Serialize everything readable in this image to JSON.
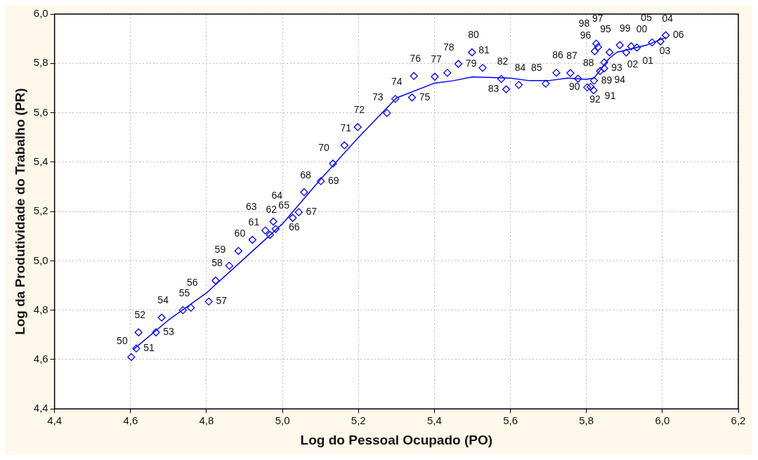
{
  "chart_data": {
    "type": "scatter",
    "xlabel": "Log do Pessoal Ocupado (PO)",
    "ylabel": "Log da Produtividade do Trabalho (PR)",
    "xlim": [
      4.4,
      6.2
    ],
    "ylim": [
      4.4,
      6.0
    ],
    "xticks": [
      {
        "value": 4.4,
        "label": "4,4"
      },
      {
        "value": 4.6,
        "label": "4,6"
      },
      {
        "value": 4.8,
        "label": "4,8"
      },
      {
        "value": 5.0,
        "label": "5,0"
      },
      {
        "value": 5.2,
        "label": "5,2"
      },
      {
        "value": 5.4,
        "label": "5,4"
      },
      {
        "value": 5.6,
        "label": "5,6"
      },
      {
        "value": 5.8,
        "label": "5,8"
      },
      {
        "value": 6.0,
        "label": "6,0"
      },
      {
        "value": 6.2,
        "label": "6,2"
      }
    ],
    "yticks": [
      {
        "value": 4.4,
        "label": "4,4"
      },
      {
        "value": 4.6,
        "label": "4,6"
      },
      {
        "value": 4.8,
        "label": "4,8"
      },
      {
        "value": 5.0,
        "label": "5,0"
      },
      {
        "value": 5.2,
        "label": "5,2"
      },
      {
        "value": 5.4,
        "label": "5,4"
      },
      {
        "value": 5.6,
        "label": "5,6"
      },
      {
        "value": 5.8,
        "label": "5,8"
      },
      {
        "value": 6.0,
        "label": "6,0"
      }
    ],
    "grid": true,
    "legend": false,
    "series": [
      {
        "type": "scatter",
        "color": "#0000ff",
        "marker": "diamond",
        "x": [
          4.602,
          4.615,
          4.621,
          4.667,
          4.682,
          4.738,
          4.759,
          4.806,
          4.824,
          4.86,
          4.884,
          4.921,
          4.967,
          4.955,
          4.982,
          4.976,
          5.027,
          5.043,
          5.057,
          5.101,
          5.133,
          5.163,
          5.198,
          5.275,
          5.297,
          5.341,
          5.346,
          5.401,
          5.434,
          5.463,
          5.499,
          5.527,
          5.576,
          5.589,
          5.622,
          5.693,
          5.721,
          5.758,
          5.778,
          5.82,
          5.802,
          5.811,
          5.819,
          5.847,
          5.836,
          5.847,
          5.822,
          5.826,
          5.831,
          5.861,
          5.905,
          5.888,
          5.918,
          5.933,
          5.973,
          5.995,
          6.009
        ],
        "values": [
          4.61,
          4.645,
          4.71,
          4.71,
          4.77,
          4.8,
          4.81,
          4.835,
          4.92,
          4.98,
          5.04,
          5.085,
          5.105,
          5.123,
          5.129,
          5.159,
          5.174,
          5.197,
          5.278,
          5.323,
          5.394,
          5.468,
          5.542,
          5.599,
          5.656,
          5.662,
          5.749,
          5.746,
          5.762,
          5.798,
          5.845,
          5.782,
          5.737,
          5.695,
          5.713,
          5.718,
          5.762,
          5.761,
          5.738,
          5.73,
          5.703,
          5.705,
          5.691,
          5.78,
          5.769,
          5.804,
          5.849,
          5.88,
          5.866,
          5.845,
          5.844,
          5.874,
          5.869,
          5.864,
          5.885,
          5.889,
          5.914
        ]
      },
      {
        "type": "line",
        "color": "#0000ff",
        "marker": "none",
        "line_style": "solid",
        "x": [
          4.607,
          4.7,
          4.8,
          4.9,
          5.0,
          5.1,
          5.2,
          5.3,
          5.4,
          5.45,
          5.5,
          5.6,
          5.65,
          5.7,
          5.75,
          5.8,
          5.82,
          5.84,
          5.86,
          5.88,
          5.92,
          5.96,
          6.009
        ],
        "values": [
          4.64,
          4.76,
          4.87,
          5.01,
          5.15,
          5.33,
          5.5,
          5.66,
          5.72,
          5.73,
          5.745,
          5.74,
          5.73,
          5.73,
          5.74,
          5.735,
          5.74,
          5.78,
          5.82,
          5.845,
          5.86,
          5.875,
          5.905
        ]
      }
    ],
    "annotations": [
      {
        "text": "50",
        "x": 4.602,
        "y": 4.61
      },
      {
        "text": "51",
        "x": 4.615,
        "y": 4.645
      },
      {
        "text": "52",
        "x": 4.621,
        "y": 4.71
      },
      {
        "text": "53",
        "x": 4.667,
        "y": 4.71
      },
      {
        "text": "54",
        "x": 4.682,
        "y": 4.77
      },
      {
        "text": "55",
        "x": 4.738,
        "y": 4.8
      },
      {
        "text": "56",
        "x": 4.759,
        "y": 4.81
      },
      {
        "text": "57",
        "x": 4.806,
        "y": 4.835
      },
      {
        "text": "58",
        "x": 4.824,
        "y": 4.92
      },
      {
        "text": "59",
        "x": 4.86,
        "y": 4.98
      },
      {
        "text": "60",
        "x": 4.884,
        "y": 5.04
      },
      {
        "text": "61",
        "x": 4.921,
        "y": 5.085
      },
      {
        "text": "62",
        "x": 4.967,
        "y": 5.105
      },
      {
        "text": "63",
        "x": 4.955,
        "y": 5.123
      },
      {
        "text": "64",
        "x": 4.982,
        "y": 5.129
      },
      {
        "text": "65",
        "x": 4.976,
        "y": 5.159
      },
      {
        "text": "66",
        "x": 5.027,
        "y": 5.174
      },
      {
        "text": "67",
        "x": 5.043,
        "y": 5.197
      },
      {
        "text": "68",
        "x": 5.057,
        "y": 5.278
      },
      {
        "text": "69",
        "x": 5.101,
        "y": 5.323
      },
      {
        "text": "70",
        "x": 5.133,
        "y": 5.394
      },
      {
        "text": "71",
        "x": 5.163,
        "y": 5.468
      },
      {
        "text": "72",
        "x": 5.198,
        "y": 5.542
      },
      {
        "text": "73",
        "x": 5.275,
        "y": 5.599
      },
      {
        "text": "74",
        "x": 5.297,
        "y": 5.656
      },
      {
        "text": "75",
        "x": 5.341,
        "y": 5.662
      },
      {
        "text": "76",
        "x": 5.346,
        "y": 5.749
      },
      {
        "text": "77",
        "x": 5.401,
        "y": 5.746
      },
      {
        "text": "78",
        "x": 5.434,
        "y": 5.762
      },
      {
        "text": "79",
        "x": 5.463,
        "y": 5.798
      },
      {
        "text": "80",
        "x": 5.499,
        "y": 5.845
      },
      {
        "text": "81",
        "x": 5.527,
        "y": 5.782
      },
      {
        "text": "82",
        "x": 5.576,
        "y": 5.737
      },
      {
        "text": "83",
        "x": 5.589,
        "y": 5.695
      },
      {
        "text": "84",
        "x": 5.622,
        "y": 5.713
      },
      {
        "text": "85",
        "x": 5.693,
        "y": 5.718
      },
      {
        "text": "86",
        "x": 5.721,
        "y": 5.762
      },
      {
        "text": "87",
        "x": 5.758,
        "y": 5.761
      },
      {
        "text": "88",
        "x": 5.778,
        "y": 5.738
      },
      {
        "text": "89",
        "x": 5.82,
        "y": 5.73
      },
      {
        "text": "90",
        "x": 5.802,
        "y": 5.703
      },
      {
        "text": "91",
        "x": 5.811,
        "y": 5.705
      },
      {
        "text": "92",
        "x": 5.819,
        "y": 5.691
      },
      {
        "text": "93",
        "x": 5.847,
        "y": 5.78
      },
      {
        "text": "94",
        "x": 5.836,
        "y": 5.769
      },
      {
        "text": "95",
        "x": 5.847,
        "y": 5.804
      },
      {
        "text": "96",
        "x": 5.822,
        "y": 5.849
      },
      {
        "text": "97",
        "x": 5.826,
        "y": 5.88
      },
      {
        "text": "98",
        "x": 5.831,
        "y": 5.866
      },
      {
        "text": "99",
        "x": 5.861,
        "y": 5.845
      },
      {
        "text": "00",
        "x": 5.905,
        "y": 5.844
      },
      {
        "text": "01",
        "x": 5.888,
        "y": 5.874
      },
      {
        "text": "02",
        "x": 5.918,
        "y": 5.869
      },
      {
        "text": "03",
        "x": 5.933,
        "y": 5.864
      },
      {
        "text": "04",
        "x": 5.973,
        "y": 5.885
      },
      {
        "text": "05",
        "x": 5.995,
        "y": 5.889
      },
      {
        "text": "06",
        "x": 6.009,
        "y": 5.914
      }
    ]
  }
}
